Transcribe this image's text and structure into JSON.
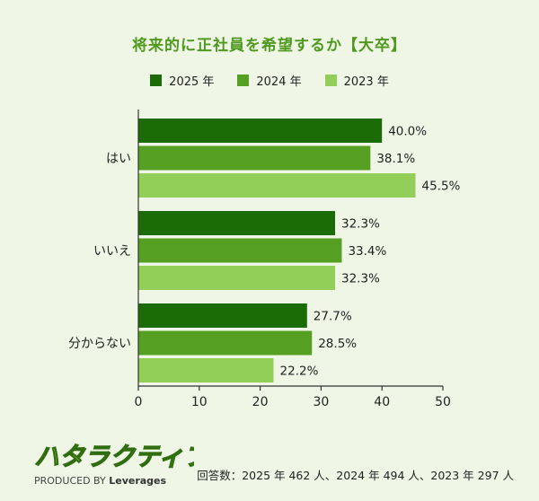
{
  "title": "将来的に正社員を希望するか【大卒】",
  "legend": [
    {
      "label": "2025 年",
      "color": "#1b6b06"
    },
    {
      "label": "2024 年",
      "color": "#55a023"
    },
    {
      "label": "2023 年",
      "color": "#92cf58"
    }
  ],
  "chart_data": {
    "type": "bar",
    "orientation": "horizontal",
    "title": "将来的に正社員を希望するか【大卒】",
    "categories": [
      "はい",
      "いいえ",
      "分からない"
    ],
    "series": [
      {
        "name": "2025 年",
        "values": [
          40.0,
          32.3,
          27.7
        ],
        "labels": [
          "40.0%",
          "32.3%",
          "27.7%"
        ]
      },
      {
        "name": "2024 年",
        "values": [
          38.1,
          33.4,
          28.5
        ],
        "labels": [
          "38.1%",
          "33.4%",
          "28.5%"
        ]
      },
      {
        "name": "2023 年",
        "values": [
          45.5,
          32.3,
          22.2
        ],
        "labels": [
          "45.5%",
          "32.3%",
          "22.2%"
        ]
      }
    ],
    "xlim": [
      0,
      50
    ],
    "xticks": [
      "0",
      "10",
      "20",
      "30",
      "40",
      "50"
    ],
    "grid": false,
    "legend_position": "top-center"
  },
  "logo": {
    "text": "ハタラクティブ",
    "tagline_prefix": "PRODUCED BY",
    "tagline_brand": "Leverages"
  },
  "footnote": "回答数：2025 年 462 人、2024 年 494 人、2023 年 297 人"
}
